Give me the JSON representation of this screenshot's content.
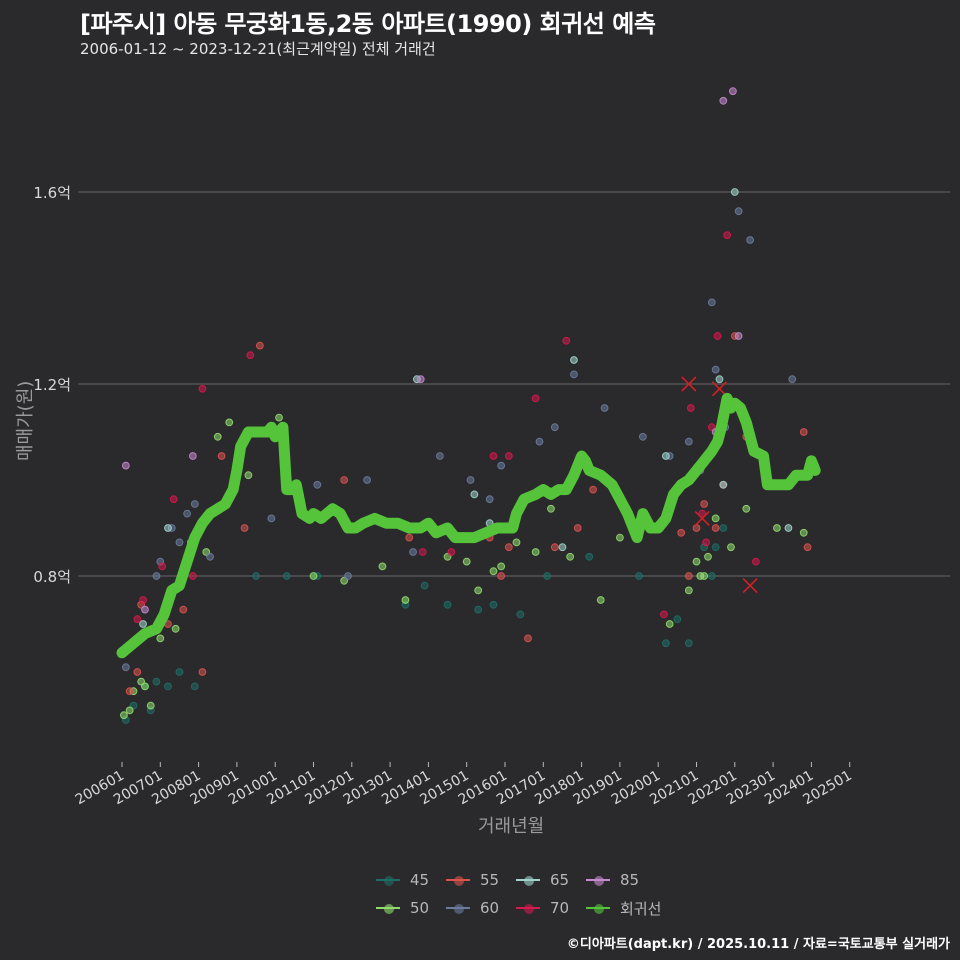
{
  "header": {
    "title": "[파주시] 아동 무궁화1동,2동 아파트(1990) 회귀선 예측",
    "subtitle": "2006-01-12 ~ 2023-12-21(최근계약일) 전체 거래건"
  },
  "footer": {
    "credit": "©디아파트(dapt.kr) / 2025.10.11 / 자료=국토교통부 실거래가"
  },
  "colors": {
    "background": "#2a292b",
    "grid": "#5c5c5c",
    "regression": "#55c43a",
    "outlier_mark": "#d0202a",
    "s45": "#1f6e66",
    "s50": "#8fdc6e",
    "s55": "#d9534f",
    "s60": "#6a7c9c",
    "s65": "#9fd4cc",
    "s70": "#d41a4e",
    "s85": "#c58ad0"
  },
  "legend": {
    "items": [
      {
        "label": "45",
        "key": "s45"
      },
      {
        "label": "55",
        "key": "s55"
      },
      {
        "label": "65",
        "key": "s65"
      },
      {
        "label": "85",
        "key": "s85"
      },
      {
        "label": "50",
        "key": "s50"
      },
      {
        "label": "60",
        "key": "s60"
      },
      {
        "label": "70",
        "key": "s70"
      },
      {
        "label": "회귀선",
        "key": "regression"
      }
    ]
  },
  "chart_data": {
    "type": "scatter",
    "title": "[파주시] 아동 무궁화1동,2동 아파트(1990) 회귀선 예측",
    "subtitle": "2006-01-12 ~ 2023-12-21(최근계약일) 전체 거래건",
    "xlabel": "거래년월",
    "ylabel": "매매가(원)",
    "x_ticks": [
      "200601",
      "200701",
      "200801",
      "200901",
      "201001",
      "201101",
      "201201",
      "201301",
      "201401",
      "201501",
      "201601",
      "201701",
      "201801",
      "201901",
      "202001",
      "202101",
      "202201",
      "202301",
      "202401",
      "202501"
    ],
    "y_ticks": [
      {
        "value": 0.8,
        "label": "0.8억"
      },
      {
        "value": 1.2,
        "label": "1.2억"
      },
      {
        "value": 1.6,
        "label": "1.6억"
      }
    ],
    "ylim": [
      0.42,
      1.85
    ],
    "xlim": [
      2005.7,
      2025.3
    ],
    "grid": "horizontal",
    "legend_position": "bottom",
    "regression_line": {
      "name": "회귀선",
      "points": [
        [
          2006.0,
          0.64
        ],
        [
          2006.3,
          0.66
        ],
        [
          2006.6,
          0.68
        ],
        [
          2006.9,
          0.69
        ],
        [
          2007.1,
          0.72
        ],
        [
          2007.3,
          0.77
        ],
        [
          2007.5,
          0.78
        ],
        [
          2007.7,
          0.83
        ],
        [
          2007.9,
          0.88
        ],
        [
          2008.1,
          0.91
        ],
        [
          2008.3,
          0.93
        ],
        [
          2008.5,
          0.94
        ],
        [
          2008.7,
          0.95
        ],
        [
          2008.9,
          0.98
        ],
        [
          2009.0,
          1.02
        ],
        [
          2009.1,
          1.07
        ],
        [
          2009.3,
          1.1
        ],
        [
          2009.5,
          1.1
        ],
        [
          2009.8,
          1.1
        ],
        [
          2009.9,
          1.11
        ],
        [
          2010.0,
          1.09
        ],
        [
          2010.1,
          1.1
        ],
        [
          2010.2,
          1.11
        ],
        [
          2010.3,
          0.98
        ],
        [
          2010.45,
          0.98
        ],
        [
          2010.55,
          0.99
        ],
        [
          2010.7,
          0.93
        ],
        [
          2010.9,
          0.92
        ],
        [
          2011.0,
          0.93
        ],
        [
          2011.2,
          0.92
        ],
        [
          2011.5,
          0.94
        ],
        [
          2011.7,
          0.93
        ],
        [
          2011.9,
          0.9
        ],
        [
          2012.1,
          0.9
        ],
        [
          2012.3,
          0.91
        ],
        [
          2012.6,
          0.92
        ],
        [
          2012.9,
          0.91
        ],
        [
          2013.2,
          0.91
        ],
        [
          2013.5,
          0.9
        ],
        [
          2013.8,
          0.9
        ],
        [
          2014.0,
          0.91
        ],
        [
          2014.2,
          0.89
        ],
        [
          2014.5,
          0.9
        ],
        [
          2014.7,
          0.88
        ],
        [
          2015.0,
          0.88
        ],
        [
          2015.2,
          0.88
        ],
        [
          2015.5,
          0.89
        ],
        [
          2015.8,
          0.9
        ],
        [
          2016.0,
          0.9
        ],
        [
          2016.2,
          0.9
        ],
        [
          2016.3,
          0.93
        ],
        [
          2016.5,
          0.96
        ],
        [
          2016.8,
          0.97
        ],
        [
          2017.0,
          0.98
        ],
        [
          2017.2,
          0.97
        ],
        [
          2017.4,
          0.98
        ],
        [
          2017.6,
          0.98
        ],
        [
          2017.8,
          1.01
        ],
        [
          2018.0,
          1.05
        ],
        [
          2018.1,
          1.04
        ],
        [
          2018.2,
          1.02
        ],
        [
          2018.5,
          1.01
        ],
        [
          2018.8,
          0.99
        ],
        [
          2019.0,
          0.96
        ],
        [
          2019.2,
          0.93
        ],
        [
          2019.3,
          0.91
        ],
        [
          2019.45,
          0.88
        ],
        [
          2019.6,
          0.93
        ],
        [
          2019.8,
          0.9
        ],
        [
          2020.0,
          0.9
        ],
        [
          2020.2,
          0.92
        ],
        [
          2020.4,
          0.97
        ],
        [
          2020.6,
          0.99
        ],
        [
          2020.8,
          1.0
        ],
        [
          2021.0,
          1.02
        ],
        [
          2021.2,
          1.04
        ],
        [
          2021.4,
          1.06
        ],
        [
          2021.55,
          1.08
        ],
        [
          2021.65,
          1.11
        ],
        [
          2021.8,
          1.17
        ],
        [
          2021.9,
          1.15
        ],
        [
          2022.0,
          1.16
        ],
        [
          2022.15,
          1.15
        ],
        [
          2022.3,
          1.12
        ],
        [
          2022.5,
          1.06
        ],
        [
          2022.75,
          1.05
        ],
        [
          2022.85,
          0.99
        ],
        [
          2023.1,
          0.99
        ],
        [
          2023.4,
          0.99
        ],
        [
          2023.6,
          1.01
        ],
        [
          2023.9,
          1.01
        ],
        [
          2024.0,
          1.04
        ],
        [
          2024.1,
          1.02
        ]
      ]
    },
    "series": [
      {
        "name": "45",
        "key": "s45",
        "points": [
          [
            2006.1,
            0.5
          ],
          [
            2006.3,
            0.53
          ],
          [
            2006.6,
            0.57
          ],
          [
            2006.75,
            0.52
          ],
          [
            2006.9,
            0.58
          ],
          [
            2007.2,
            0.57
          ],
          [
            2007.5,
            0.6
          ],
          [
            2007.9,
            0.57
          ],
          [
            2009.5,
            0.8
          ],
          [
            2010.3,
            0.8
          ],
          [
            2011.1,
            0.8
          ],
          [
            2013.4,
            0.74
          ],
          [
            2013.9,
            0.78
          ],
          [
            2014.5,
            0.74
          ],
          [
            2015.3,
            0.73
          ],
          [
            2015.7,
            0.74
          ],
          [
            2016.4,
            0.72
          ],
          [
            2017.1,
            0.8
          ],
          [
            2018.2,
            0.84
          ],
          [
            2019.5,
            0.8
          ],
          [
            2020.2,
            0.66
          ],
          [
            2020.5,
            0.71
          ],
          [
            2020.8,
            0.66
          ],
          [
            2021.2,
            0.86
          ],
          [
            2021.4,
            0.8
          ],
          [
            2021.5,
            0.86
          ],
          [
            2021.7,
            0.9
          ]
        ]
      },
      {
        "name": "50",
        "key": "s50",
        "points": [
          [
            2006.05,
            0.51
          ],
          [
            2006.2,
            0.52
          ],
          [
            2006.3,
            0.56
          ],
          [
            2006.5,
            0.58
          ],
          [
            2006.6,
            0.57
          ],
          [
            2006.75,
            0.53
          ],
          [
            2007.0,
            0.67
          ],
          [
            2007.4,
            0.69
          ],
          [
            2007.8,
            0.87
          ],
          [
            2008.2,
            0.85
          ],
          [
            2008.5,
            1.09
          ],
          [
            2008.8,
            1.12
          ],
          [
            2009.3,
            1.01
          ],
          [
            2010.1,
            1.13
          ],
          [
            2011.0,
            0.8
          ],
          [
            2011.8,
            0.79
          ],
          [
            2012.8,
            0.82
          ],
          [
            2013.4,
            0.75
          ],
          [
            2014.5,
            0.84
          ],
          [
            2015.0,
            0.83
          ],
          [
            2015.3,
            0.77
          ],
          [
            2015.7,
            0.81
          ],
          [
            2015.9,
            0.82
          ],
          [
            2016.3,
            0.87
          ],
          [
            2016.8,
            0.85
          ],
          [
            2017.2,
            0.94
          ],
          [
            2017.7,
            0.84
          ],
          [
            2018.5,
            0.75
          ],
          [
            2019.0,
            0.88
          ],
          [
            2020.3,
            0.7
          ],
          [
            2020.8,
            0.77
          ],
          [
            2021.0,
            0.83
          ],
          [
            2021.1,
            0.8
          ],
          [
            2021.2,
            0.8
          ],
          [
            2021.3,
            0.84
          ],
          [
            2021.5,
            0.92
          ],
          [
            2021.9,
            0.86
          ],
          [
            2022.3,
            0.94
          ],
          [
            2023.1,
            0.9
          ],
          [
            2023.8,
            0.89
          ]
        ]
      },
      {
        "name": "55",
        "key": "s55",
        "points": [
          [
            2006.2,
            0.56
          ],
          [
            2006.4,
            0.6
          ],
          [
            2006.5,
            0.74
          ],
          [
            2007.2,
            0.7
          ],
          [
            2007.6,
            0.73
          ],
          [
            2008.1,
            0.6
          ],
          [
            2008.6,
            1.05
          ],
          [
            2009.2,
            0.9
          ],
          [
            2009.6,
            1.28
          ],
          [
            2011.8,
            1.0
          ],
          [
            2013.5,
            0.88
          ],
          [
            2015.6,
            0.88
          ],
          [
            2015.9,
            0.8
          ],
          [
            2016.1,
            0.86
          ],
          [
            2016.6,
            0.67
          ],
          [
            2017.3,
            0.86
          ],
          [
            2017.9,
            0.9
          ],
          [
            2018.3,
            0.98
          ],
          [
            2020.6,
            0.89
          ],
          [
            2020.8,
            0.8
          ],
          [
            2021.0,
            0.9
          ],
          [
            2021.2,
            0.95
          ],
          [
            2021.5,
            0.9
          ],
          [
            2021.7,
            0.99
          ],
          [
            2022.0,
            1.3
          ],
          [
            2022.3,
            1.09
          ],
          [
            2023.9,
            0.86
          ],
          [
            2023.8,
            1.1
          ]
        ]
      },
      {
        "name": "60",
        "key": "s60",
        "points": [
          [
            2006.1,
            0.61
          ],
          [
            2006.9,
            0.8
          ],
          [
            2007.0,
            0.83
          ],
          [
            2007.3,
            0.9
          ],
          [
            2007.5,
            0.87
          ],
          [
            2007.7,
            0.93
          ],
          [
            2007.9,
            0.95
          ],
          [
            2008.1,
            0.91
          ],
          [
            2008.3,
            0.84
          ],
          [
            2009.9,
            0.92
          ],
          [
            2011.1,
            0.99
          ],
          [
            2011.9,
            0.8
          ],
          [
            2012.4,
            1.0
          ],
          [
            2013.6,
            0.85
          ],
          [
            2014.3,
            1.05
          ],
          [
            2015.1,
            1.0
          ],
          [
            2015.6,
            0.96
          ],
          [
            2015.9,
            1.03
          ],
          [
            2016.9,
            1.08
          ],
          [
            2017.3,
            1.11
          ],
          [
            2017.8,
            1.22
          ],
          [
            2018.6,
            1.15
          ],
          [
            2019.6,
            1.09
          ],
          [
            2020.3,
            1.05
          ],
          [
            2020.8,
            1.08
          ],
          [
            2021.1,
            1.02
          ],
          [
            2021.4,
            1.37
          ],
          [
            2021.5,
            1.23
          ],
          [
            2021.75,
            1.11
          ],
          [
            2022.1,
            1.56
          ],
          [
            2022.4,
            1.5
          ],
          [
            2023.5,
            1.21
          ]
        ]
      },
      {
        "name": "65",
        "key": "s65",
        "points": [
          [
            2006.55,
            0.7
          ],
          [
            2007.2,
            0.9
          ],
          [
            2013.7,
            1.21
          ],
          [
            2015.2,
            0.97
          ],
          [
            2015.6,
            0.91
          ],
          [
            2017.5,
            0.86
          ],
          [
            2017.8,
            1.25
          ],
          [
            2020.2,
            1.05
          ],
          [
            2021.6,
            1.21
          ],
          [
            2021.7,
            0.99
          ],
          [
            2022.0,
            1.6
          ],
          [
            2023.4,
            0.9
          ]
        ]
      },
      {
        "name": "70",
        "key": "s70",
        "points": [
          [
            2006.4,
            0.71
          ],
          [
            2006.55,
            0.75
          ],
          [
            2007.05,
            0.82
          ],
          [
            2007.35,
            0.96
          ],
          [
            2007.85,
            0.8
          ],
          [
            2008.1,
            1.19
          ],
          [
            2009.35,
            1.26
          ],
          [
            2013.85,
            0.85
          ],
          [
            2014.6,
            0.85
          ],
          [
            2015.7,
            1.05
          ],
          [
            2016.1,
            1.05
          ],
          [
            2016.8,
            1.17
          ],
          [
            2017.6,
            1.29
          ],
          [
            2020.15,
            0.72
          ],
          [
            2020.85,
            1.15
          ],
          [
            2021.15,
            0.93
          ],
          [
            2021.25,
            0.87
          ],
          [
            2021.4,
            1.11
          ],
          [
            2021.55,
            1.3
          ],
          [
            2021.8,
            1.51
          ],
          [
            2022.55,
            0.83
          ]
        ]
      },
      {
        "name": "85",
        "key": "s85",
        "points": [
          [
            2006.1,
            1.03
          ],
          [
            2006.6,
            0.73
          ],
          [
            2007.85,
            1.05
          ],
          [
            2013.8,
            1.21
          ],
          [
            2021.7,
            1.79
          ],
          [
            2021.95,
            1.81
          ],
          [
            2022.1,
            1.3
          ],
          [
            2021.5,
            1.1
          ]
        ]
      }
    ],
    "outliers_marked": [
      [
        2020.8,
        1.2
      ],
      [
        2021.6,
        1.19
      ],
      [
        2022.4,
        0.78
      ],
      [
        2021.15,
        0.92
      ]
    ]
  }
}
